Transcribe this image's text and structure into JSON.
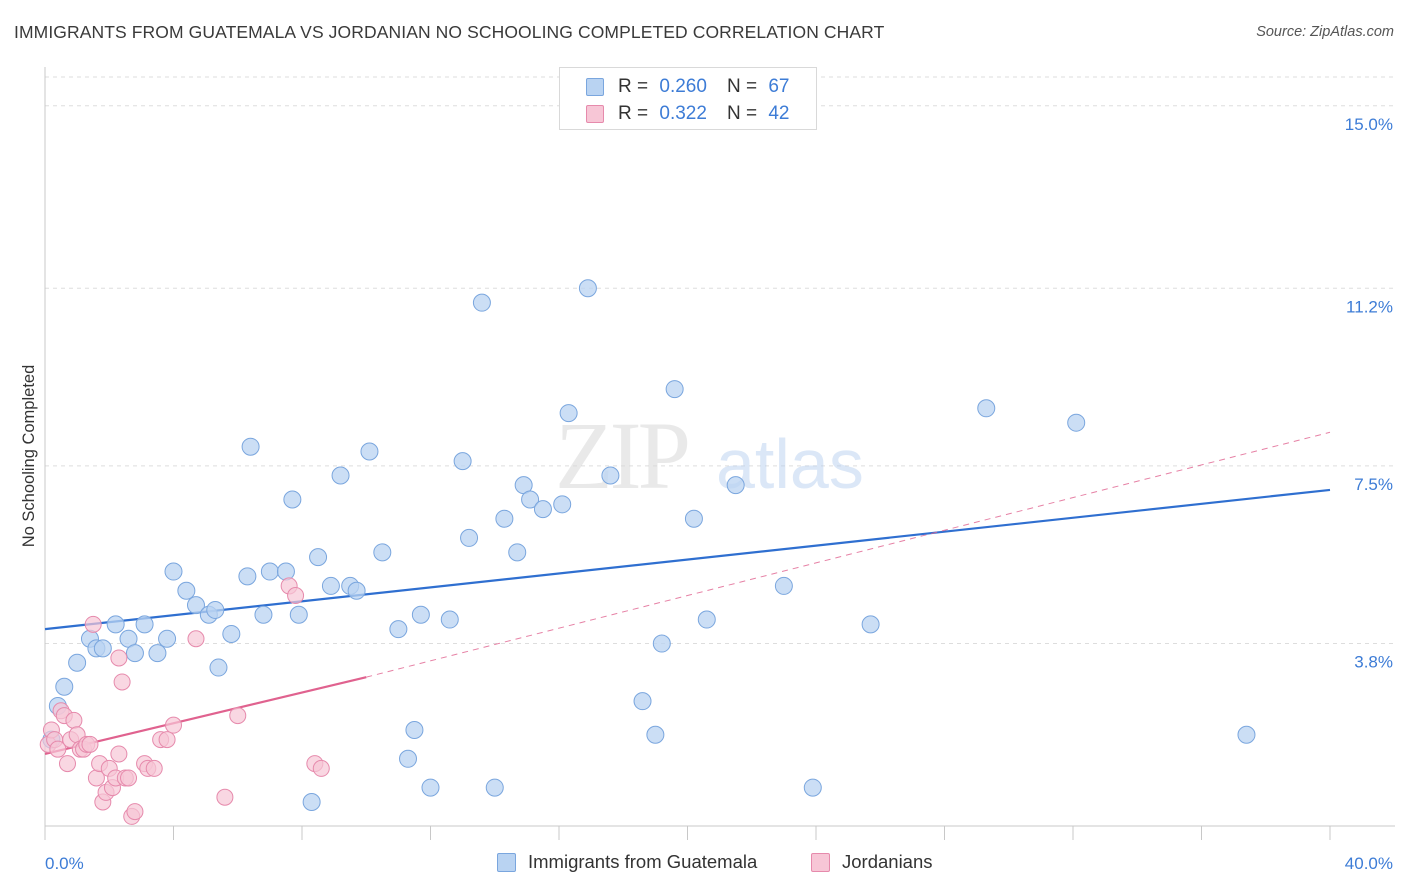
{
  "title": "IMMIGRANTS FROM GUATEMALA VS JORDANIAN NO SCHOOLING COMPLETED CORRELATION CHART",
  "source": "Source: ZipAtlas.com",
  "watermark": "ZIPatlas",
  "legend_top": [
    {
      "r_label": "R =",
      "r_value": "0.260",
      "n_label": "N =",
      "n_value": "67"
    },
    {
      "r_label": "R =",
      "r_value": "0.322",
      "n_label": "N =",
      "n_value": "42"
    }
  ],
  "legend_bottom": [
    "Immigrants from Guatemala",
    "Jordanians"
  ],
  "colors": {
    "blue_fill": "#b9d3f2",
    "blue_stroke": "#7aa6de",
    "blue_line": "#2f6fd0",
    "pink_fill": "#f7c6d6",
    "pink_stroke": "#e68aac",
    "pink_line": "#e0628f",
    "grid": "#dddddd",
    "tick_text": "#3d7cd6"
  },
  "chart_data": {
    "type": "scatter",
    "title": "IMMIGRANTS FROM GUATEMALA VS JORDANIAN NO SCHOOLING COMPLETED CORRELATION CHART",
    "xlabel": "",
    "ylabel": "No Schooling Completed",
    "xlim": [
      0,
      40
    ],
    "ylim": [
      0,
      15.6
    ],
    "x_tick_labels": [
      "0.0%",
      "40.0%"
    ],
    "y_ticks": [
      3.8,
      7.5,
      11.2,
      15.0
    ],
    "y_tick_labels": [
      "3.8%",
      "7.5%",
      "11.2%",
      "15.0%"
    ],
    "grid": true,
    "legend_position": "top-center",
    "series": [
      {
        "name": "Immigrants from Guatemala",
        "r": 0.26,
        "n": 67,
        "trend": {
          "x": [
            0,
            40
          ],
          "y": [
            4.1,
            7.0
          ]
        },
        "points": [
          [
            0.2,
            1.8
          ],
          [
            0.4,
            2.5
          ],
          [
            0.6,
            2.9
          ],
          [
            1.0,
            3.4
          ],
          [
            1.4,
            3.9
          ],
          [
            1.6,
            3.7
          ],
          [
            1.8,
            3.7
          ],
          [
            2.2,
            4.2
          ],
          [
            2.6,
            3.9
          ],
          [
            2.8,
            3.6
          ],
          [
            3.1,
            4.2
          ],
          [
            3.5,
            3.6
          ],
          [
            3.8,
            3.9
          ],
          [
            4.0,
            5.3
          ],
          [
            4.4,
            4.9
          ],
          [
            4.7,
            4.6
          ],
          [
            5.1,
            4.4
          ],
          [
            5.3,
            4.5
          ],
          [
            5.4,
            3.3
          ],
          [
            5.8,
            4.0
          ],
          [
            6.3,
            5.2
          ],
          [
            6.4,
            7.9
          ],
          [
            6.8,
            4.4
          ],
          [
            7.0,
            5.3
          ],
          [
            7.5,
            5.3
          ],
          [
            7.7,
            6.8
          ],
          [
            7.9,
            4.4
          ],
          [
            8.3,
            0.5
          ],
          [
            8.5,
            5.6
          ],
          [
            8.9,
            5.0
          ],
          [
            9.2,
            7.3
          ],
          [
            9.5,
            5.0
          ],
          [
            9.7,
            4.9
          ],
          [
            10.1,
            7.8
          ],
          [
            10.5,
            5.7
          ],
          [
            11.0,
            4.1
          ],
          [
            11.3,
            1.4
          ],
          [
            11.5,
            2.0
          ],
          [
            11.7,
            4.4
          ],
          [
            12.0,
            0.8
          ],
          [
            12.6,
            4.3
          ],
          [
            13.0,
            7.6
          ],
          [
            13.2,
            6.0
          ],
          [
            13.6,
            10.9
          ],
          [
            14.0,
            0.8
          ],
          [
            14.3,
            6.4
          ],
          [
            14.7,
            5.7
          ],
          [
            14.9,
            7.1
          ],
          [
            15.1,
            6.8
          ],
          [
            15.5,
            6.6
          ],
          [
            16.1,
            6.7
          ],
          [
            16.3,
            8.6
          ],
          [
            16.9,
            11.2
          ],
          [
            17.6,
            7.3
          ],
          [
            18.6,
            2.6
          ],
          [
            19.0,
            1.9
          ],
          [
            19.2,
            3.8
          ],
          [
            19.6,
            9.1
          ],
          [
            20.2,
            6.4
          ],
          [
            20.6,
            4.3
          ],
          [
            21.5,
            7.1
          ],
          [
            23.0,
            5.0
          ],
          [
            23.9,
            0.8
          ],
          [
            25.7,
            4.2
          ],
          [
            29.3,
            8.7
          ],
          [
            32.1,
            8.4
          ],
          [
            37.4,
            1.9
          ]
        ]
      },
      {
        "name": "Jordanians",
        "r": 0.322,
        "n": 42,
        "trend_solid": {
          "x": [
            0,
            10.0
          ],
          "y": [
            1.5,
            3.1
          ]
        },
        "trend_dashed": {
          "x": [
            10.0,
            40
          ],
          "y": [
            3.1,
            8.2
          ]
        },
        "points": [
          [
            0.1,
            1.7
          ],
          [
            0.2,
            2.0
          ],
          [
            0.3,
            1.8
          ],
          [
            0.4,
            1.6
          ],
          [
            0.5,
            2.4
          ],
          [
            0.6,
            2.3
          ],
          [
            0.7,
            1.3
          ],
          [
            0.8,
            1.8
          ],
          [
            0.9,
            2.2
          ],
          [
            1.0,
            1.9
          ],
          [
            1.1,
            1.6
          ],
          [
            1.2,
            1.6
          ],
          [
            1.3,
            1.7
          ],
          [
            1.4,
            1.7
          ],
          [
            1.5,
            4.2
          ],
          [
            1.6,
            1.0
          ],
          [
            1.7,
            1.3
          ],
          [
            1.8,
            0.5
          ],
          [
            1.9,
            0.7
          ],
          [
            2.0,
            1.2
          ],
          [
            2.1,
            0.8
          ],
          [
            2.2,
            1.0
          ],
          [
            2.3,
            3.5
          ],
          [
            2.3,
            1.5
          ],
          [
            2.4,
            3.0
          ],
          [
            2.5,
            1.0
          ],
          [
            2.6,
            1.0
          ],
          [
            2.7,
            0.2
          ],
          [
            2.8,
            0.3
          ],
          [
            3.1,
            1.3
          ],
          [
            3.2,
            1.2
          ],
          [
            3.4,
            1.2
          ],
          [
            3.6,
            1.8
          ],
          [
            3.8,
            1.8
          ],
          [
            4.0,
            2.1
          ],
          [
            4.7,
            3.9
          ],
          [
            5.6,
            0.6
          ],
          [
            6.0,
            2.3
          ],
          [
            7.6,
            5.0
          ],
          [
            7.8,
            4.8
          ],
          [
            8.4,
            1.3
          ],
          [
            8.6,
            1.2
          ]
        ]
      }
    ]
  }
}
